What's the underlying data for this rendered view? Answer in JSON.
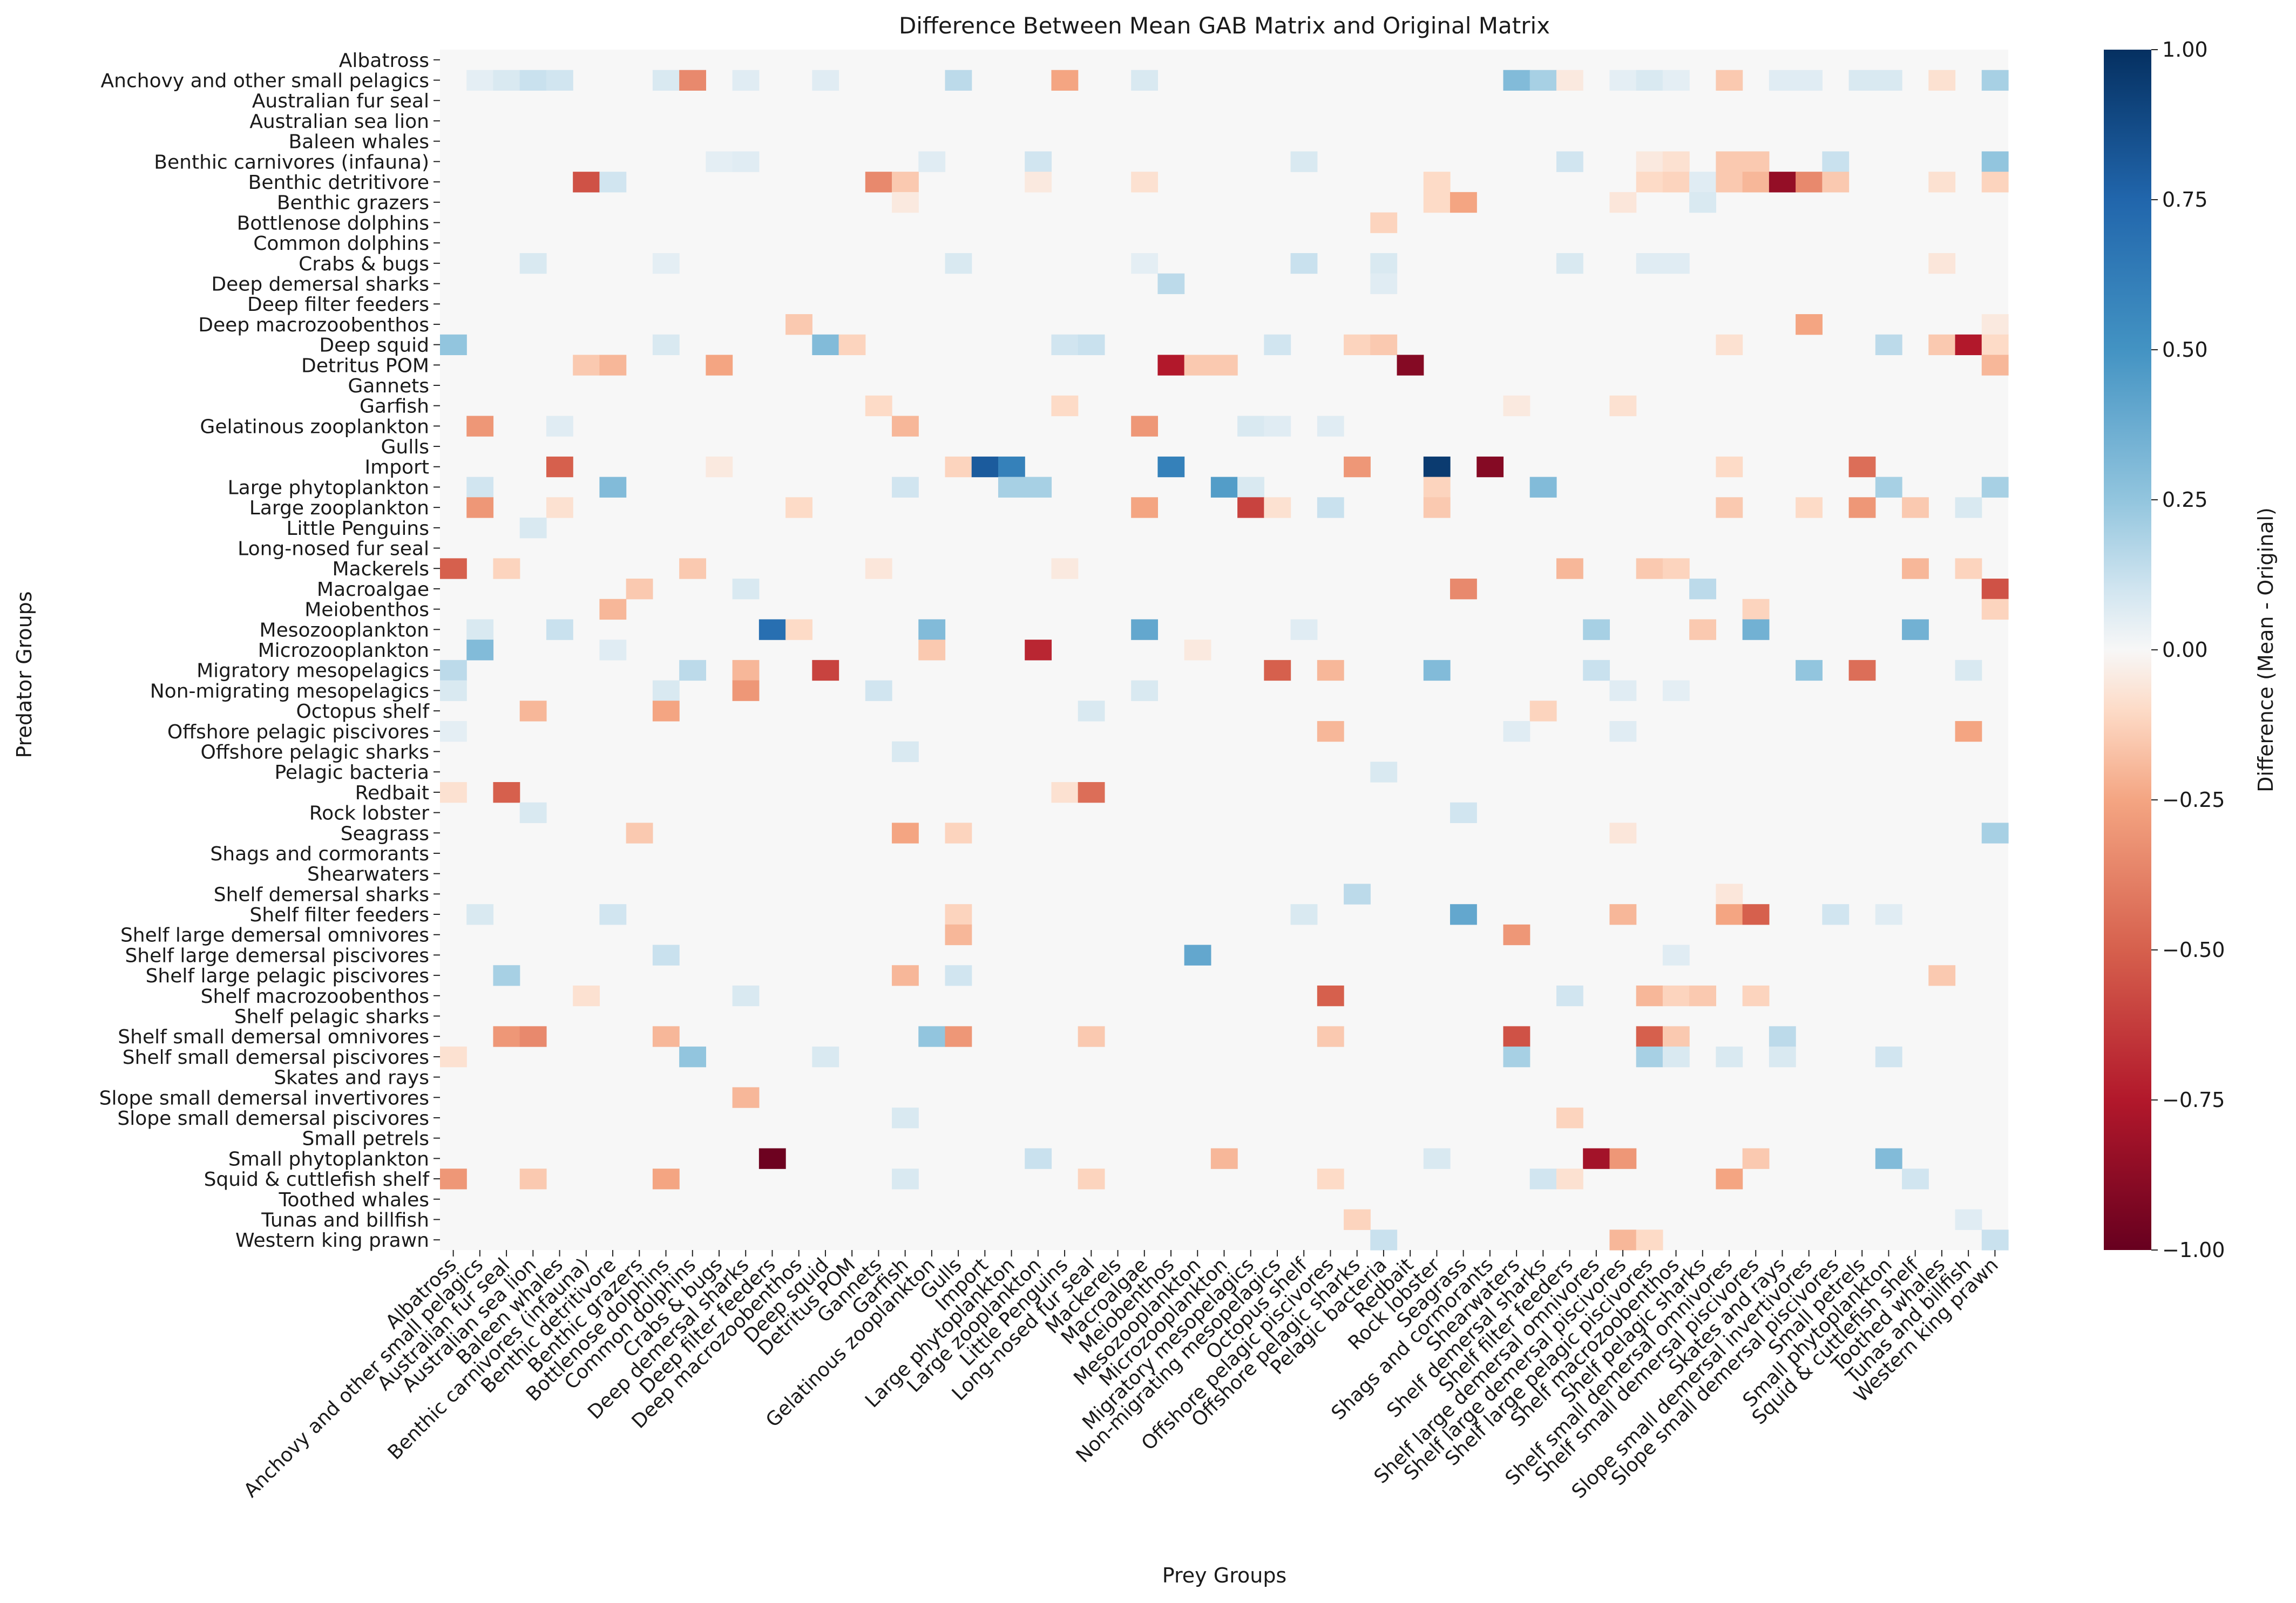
{
  "chart_data": {
    "type": "heatmap",
    "title": "Difference Between Mean GAB Matrix and Original Matrix",
    "xlabel": "Prey Groups",
    "ylabel": "Predator Groups",
    "colorbar_label": "Difference (Mean - Original)",
    "colormap": "RdBu",
    "vmin": -1.0,
    "vmax": 1.0,
    "colorbar_ticks": [
      "−1.00",
      "−0.75",
      "−0.50",
      "−0.25",
      "0.00",
      "0.25",
      "0.50",
      "0.75",
      "1.00"
    ],
    "colorbar_tick_values": [
      -1.0,
      -0.75,
      -0.5,
      -0.25,
      0.0,
      0.25,
      0.5,
      0.75,
      1.0
    ],
    "legend_placement": "right",
    "groups": [
      "Albatross",
      "Anchovy and other small pelagics",
      "Australian fur seal",
      "Australian sea lion",
      "Baleen whales",
      "Benthic carnivores (infauna)",
      "Benthic detritivore",
      "Benthic grazers",
      "Bottlenose dolphins",
      "Common dolphins",
      "Crabs & bugs",
      "Deep demersal sharks",
      "Deep filter feeders",
      "Deep macrozoobenthos",
      "Deep squid",
      "Detritus POM",
      "Gannets",
      "Garfish",
      "Gelatinous zooplankton",
      "Gulls",
      "Import",
      "Large phytoplankton",
      "Large zooplankton",
      "Little Penguins",
      "Long-nosed fur seal",
      "Mackerels",
      "Macroalgae",
      "Meiobenthos",
      "Mesozooplankton",
      "Microzooplankton",
      "Migratory mesopelagics",
      "Non-migrating mesopelagics",
      "Octopus shelf",
      "Offshore pelagic piscivores",
      "Offshore pelagic sharks",
      "Pelagic bacteria",
      "Redbait",
      "Rock lobster",
      "Seagrass",
      "Shags and cormorants",
      "Shearwaters",
      "Shelf demersal sharks",
      "Shelf filter feeders",
      "Shelf large demersal omnivores",
      "Shelf large demersal piscivores",
      "Shelf large pelagic piscivores",
      "Shelf macrozoobenthos",
      "Shelf pelagic sharks",
      "Shelf small demersal omnivores",
      "Shelf small demersal piscivores",
      "Skates and rays",
      "Slope small demersal invertivores",
      "Slope small demersal piscivores",
      "Small petrels",
      "Small phytoplankton",
      "Squid & cuttlefish shelf",
      "Toothed whales",
      "Tunas and billfish",
      "Western king prawn"
    ],
    "cells": [
      [
        1,
        1,
        0.05
      ],
      [
        1,
        2,
        0.08
      ],
      [
        1,
        3,
        0.12
      ],
      [
        1,
        4,
        0.1
      ],
      [
        1,
        8,
        0.08
      ],
      [
        1,
        9,
        -0.35
      ],
      [
        1,
        11,
        0.06
      ],
      [
        1,
        14,
        0.06
      ],
      [
        1,
        19,
        0.15
      ],
      [
        1,
        23,
        -0.25
      ],
      [
        1,
        26,
        0.08
      ],
      [
        1,
        40,
        0.3
      ],
      [
        1,
        41,
        0.2
      ],
      [
        1,
        42,
        -0.05
      ],
      [
        1,
        44,
        0.05
      ],
      [
        1,
        45,
        0.08
      ],
      [
        1,
        46,
        0.05
      ],
      [
        1,
        48,
        -0.15
      ],
      [
        1,
        50,
        0.06
      ],
      [
        1,
        51,
        0.06
      ],
      [
        1,
        53,
        0.08
      ],
      [
        1,
        54,
        0.08
      ],
      [
        1,
        56,
        -0.08
      ],
      [
        1,
        58,
        0.2
      ],
      [
        5,
        10,
        0.05
      ],
      [
        5,
        11,
        0.06
      ],
      [
        5,
        18,
        0.06
      ],
      [
        5,
        22,
        0.1
      ],
      [
        5,
        32,
        0.08
      ],
      [
        5,
        42,
        0.1
      ],
      [
        5,
        45,
        -0.05
      ],
      [
        5,
        46,
        -0.08
      ],
      [
        5,
        48,
        -0.15
      ],
      [
        5,
        49,
        -0.15
      ],
      [
        5,
        52,
        0.12
      ],
      [
        5,
        58,
        0.25
      ],
      [
        6,
        5,
        -0.55
      ],
      [
        6,
        6,
        0.1
      ],
      [
        6,
        16,
        -0.35
      ],
      [
        6,
        17,
        -0.15
      ],
      [
        6,
        22,
        -0.05
      ],
      [
        6,
        26,
        -0.08
      ],
      [
        6,
        37,
        -0.1
      ],
      [
        6,
        45,
        -0.1
      ],
      [
        6,
        46,
        -0.12
      ],
      [
        6,
        47,
        0.06
      ],
      [
        6,
        48,
        -0.15
      ],
      [
        6,
        49,
        -0.2
      ],
      [
        6,
        50,
        -0.85
      ],
      [
        6,
        51,
        -0.35
      ],
      [
        6,
        52,
        -0.15
      ],
      [
        6,
        56,
        -0.08
      ],
      [
        6,
        58,
        -0.12
      ],
      [
        7,
        17,
        -0.05
      ],
      [
        7,
        37,
        -0.1
      ],
      [
        7,
        38,
        -0.25
      ],
      [
        7,
        44,
        -0.06
      ],
      [
        7,
        47,
        0.08
      ],
      [
        8,
        35,
        -0.12
      ],
      [
        10,
        3,
        0.08
      ],
      [
        10,
        8,
        0.05
      ],
      [
        10,
        19,
        0.08
      ],
      [
        10,
        26,
        0.05
      ],
      [
        10,
        32,
        0.12
      ],
      [
        10,
        35,
        0.08
      ],
      [
        10,
        42,
        0.08
      ],
      [
        10,
        45,
        0.06
      ],
      [
        10,
        46,
        0.06
      ],
      [
        10,
        56,
        -0.06
      ],
      [
        11,
        27,
        0.15
      ],
      [
        11,
        35,
        0.06
      ],
      [
        13,
        13,
        -0.15
      ],
      [
        13,
        51,
        -0.25
      ],
      [
        13,
        58,
        -0.05
      ],
      [
        14,
        0,
        0.25
      ],
      [
        14,
        14,
        0.3
      ],
      [
        14,
        15,
        -0.12
      ],
      [
        14,
        8,
        0.08
      ],
      [
        14,
        23,
        0.1
      ],
      [
        14,
        24,
        0.12
      ],
      [
        14,
        31,
        0.1
      ],
      [
        14,
        34,
        -0.12
      ],
      [
        14,
        35,
        -0.15
      ],
      [
        14,
        48,
        -0.08
      ],
      [
        14,
        54,
        0.15
      ],
      [
        14,
        56,
        -0.15
      ],
      [
        14,
        57,
        -0.75
      ],
      [
        14,
        58,
        -0.1
      ],
      [
        15,
        5,
        -0.15
      ],
      [
        15,
        6,
        -0.2
      ],
      [
        15,
        10,
        -0.25
      ],
      [
        15,
        27,
        -0.75
      ],
      [
        15,
        28,
        -0.15
      ],
      [
        15,
        29,
        -0.15
      ],
      [
        15,
        36,
        -0.9
      ],
      [
        15,
        58,
        -0.2
      ],
      [
        17,
        16,
        -0.1
      ],
      [
        17,
        23,
        -0.1
      ],
      [
        17,
        40,
        -0.05
      ],
      [
        17,
        44,
        -0.08
      ],
      [
        18,
        1,
        -0.3
      ],
      [
        18,
        4,
        0.06
      ],
      [
        18,
        17,
        -0.2
      ],
      [
        18,
        26,
        -0.3
      ],
      [
        18,
        30,
        0.08
      ],
      [
        18,
        31,
        0.06
      ],
      [
        18,
        33,
        0.06
      ],
      [
        20,
        4,
        -0.5
      ],
      [
        20,
        10,
        -0.05
      ],
      [
        20,
        19,
        -0.12
      ],
      [
        20,
        20,
        0.8
      ],
      [
        20,
        21,
        0.6
      ],
      [
        20,
        27,
        0.6
      ],
      [
        20,
        34,
        -0.3
      ],
      [
        20,
        37,
        0.95
      ],
      [
        20,
        39,
        -0.9
      ],
      [
        20,
        48,
        -0.1
      ],
      [
        20,
        53,
        -0.45
      ],
      [
        21,
        1,
        0.1
      ],
      [
        21,
        6,
        0.3
      ],
      [
        21,
        17,
        0.1
      ],
      [
        21,
        21,
        0.2
      ],
      [
        21,
        22,
        0.2
      ],
      [
        21,
        29,
        0.45
      ],
      [
        21,
        30,
        0.08
      ],
      [
        21,
        37,
        -0.12
      ],
      [
        21,
        41,
        0.3
      ],
      [
        21,
        54,
        0.2
      ],
      [
        21,
        58,
        0.2
      ],
      [
        22,
        1,
        -0.3
      ],
      [
        22,
        4,
        -0.08
      ],
      [
        22,
        13,
        -0.1
      ],
      [
        22,
        26,
        -0.25
      ],
      [
        22,
        30,
        -0.6
      ],
      [
        22,
        31,
        -0.08
      ],
      [
        22,
        33,
        0.12
      ],
      [
        22,
        37,
        -0.15
      ],
      [
        22,
        48,
        -0.15
      ],
      [
        22,
        51,
        -0.1
      ],
      [
        22,
        53,
        -0.3
      ],
      [
        22,
        55,
        -0.15
      ],
      [
        22,
        57,
        0.08
      ],
      [
        23,
        3,
        0.08
      ],
      [
        25,
        0,
        -0.5
      ],
      [
        25,
        2,
        -0.12
      ],
      [
        25,
        9,
        -0.15
      ],
      [
        25,
        16,
        -0.06
      ],
      [
        25,
        23,
        -0.05
      ],
      [
        25,
        42,
        -0.2
      ],
      [
        25,
        45,
        -0.15
      ],
      [
        25,
        46,
        -0.12
      ],
      [
        25,
        55,
        -0.2
      ],
      [
        25,
        57,
        -0.12
      ],
      [
        26,
        7,
        -0.15
      ],
      [
        26,
        11,
        0.08
      ],
      [
        26,
        38,
        -0.35
      ],
      [
        26,
        47,
        0.15
      ],
      [
        26,
        58,
        -0.55
      ],
      [
        27,
        6,
        -0.2
      ],
      [
        27,
        49,
        -0.12
      ],
      [
        27,
        58,
        -0.12
      ],
      [
        28,
        1,
        0.08
      ],
      [
        28,
        4,
        0.12
      ],
      [
        28,
        12,
        0.7
      ],
      [
        28,
        13,
        -0.1
      ],
      [
        28,
        18,
        0.3
      ],
      [
        28,
        26,
        0.4
      ],
      [
        28,
        32,
        0.06
      ],
      [
        28,
        43,
        0.2
      ],
      [
        28,
        47,
        -0.15
      ],
      [
        28,
        49,
        0.35
      ],
      [
        28,
        55,
        0.35
      ],
      [
        29,
        1,
        0.3
      ],
      [
        29,
        6,
        0.06
      ],
      [
        29,
        18,
        -0.15
      ],
      [
        29,
        22,
        -0.7
      ],
      [
        29,
        28,
        -0.05
      ],
      [
        30,
        0,
        0.15
      ],
      [
        30,
        9,
        0.15
      ],
      [
        30,
        11,
        -0.2
      ],
      [
        30,
        14,
        -0.6
      ],
      [
        30,
        31,
        -0.5
      ],
      [
        30,
        33,
        -0.2
      ],
      [
        30,
        37,
        0.3
      ],
      [
        30,
        43,
        0.12
      ],
      [
        30,
        51,
        0.25
      ],
      [
        30,
        53,
        -0.45
      ],
      [
        30,
        57,
        0.08
      ],
      [
        31,
        0,
        0.08
      ],
      [
        31,
        8,
        0.08
      ],
      [
        31,
        11,
        -0.3
      ],
      [
        31,
        16,
        0.1
      ],
      [
        31,
        26,
        0.08
      ],
      [
        31,
        44,
        0.06
      ],
      [
        31,
        46,
        0.05
      ],
      [
        32,
        3,
        -0.2
      ],
      [
        32,
        8,
        -0.25
      ],
      [
        32,
        24,
        0.08
      ],
      [
        32,
        41,
        -0.12
      ],
      [
        33,
        0,
        0.05
      ],
      [
        33,
        33,
        -0.2
      ],
      [
        33,
        40,
        0.06
      ],
      [
        33,
        44,
        0.06
      ],
      [
        33,
        57,
        -0.25
      ],
      [
        34,
        17,
        0.08
      ],
      [
        35,
        35,
        0.08
      ],
      [
        36,
        0,
        -0.08
      ],
      [
        36,
        2,
        -0.5
      ],
      [
        36,
        23,
        -0.08
      ],
      [
        36,
        24,
        -0.45
      ],
      [
        37,
        3,
        0.08
      ],
      [
        37,
        38,
        0.1
      ],
      [
        38,
        7,
        -0.15
      ],
      [
        38,
        17,
        -0.25
      ],
      [
        38,
        19,
        -0.12
      ],
      [
        38,
        44,
        -0.06
      ],
      [
        38,
        58,
        0.2
      ],
      [
        41,
        34,
        0.15
      ],
      [
        41,
        48,
        -0.06
      ],
      [
        42,
        1,
        0.08
      ],
      [
        42,
        6,
        0.1
      ],
      [
        42,
        38,
        0.4
      ],
      [
        42,
        19,
        -0.12
      ],
      [
        42,
        32,
        0.08
      ],
      [
        42,
        44,
        -0.2
      ],
      [
        42,
        48,
        -0.25
      ],
      [
        42,
        49,
        -0.5
      ],
      [
        42,
        52,
        0.1
      ],
      [
        42,
        54,
        0.06
      ],
      [
        43,
        19,
        -0.2
      ],
      [
        43,
        40,
        -0.3
      ],
      [
        44,
        8,
        0.12
      ],
      [
        44,
        28,
        0.4
      ],
      [
        44,
        46,
        0.06
      ],
      [
        45,
        2,
        0.2
      ],
      [
        45,
        17,
        -0.2
      ],
      [
        45,
        19,
        0.1
      ],
      [
        45,
        56,
        -0.15
      ],
      [
        46,
        5,
        -0.08
      ],
      [
        46,
        11,
        0.08
      ],
      [
        46,
        33,
        -0.5
      ],
      [
        46,
        42,
        0.1
      ],
      [
        46,
        45,
        -0.2
      ],
      [
        46,
        46,
        -0.12
      ],
      [
        46,
        47,
        -0.15
      ],
      [
        46,
        49,
        -0.12
      ],
      [
        48,
        2,
        -0.3
      ],
      [
        48,
        3,
        -0.35
      ],
      [
        48,
        8,
        -0.2
      ],
      [
        48,
        18,
        0.25
      ],
      [
        48,
        19,
        -0.3
      ],
      [
        48,
        24,
        -0.15
      ],
      [
        48,
        33,
        -0.15
      ],
      [
        48,
        40,
        -0.55
      ],
      [
        48,
        45,
        -0.5
      ],
      [
        48,
        46,
        -0.15
      ],
      [
        48,
        50,
        0.15
      ],
      [
        49,
        0,
        -0.08
      ],
      [
        49,
        9,
        0.25
      ],
      [
        49,
        14,
        0.08
      ],
      [
        49,
        40,
        0.2
      ],
      [
        49,
        45,
        0.2
      ],
      [
        49,
        46,
        0.08
      ],
      [
        49,
        48,
        0.08
      ],
      [
        49,
        50,
        0.08
      ],
      [
        49,
        54,
        0.1
      ],
      [
        51,
        11,
        -0.2
      ],
      [
        52,
        17,
        0.08
      ],
      [
        52,
        42,
        -0.12
      ],
      [
        54,
        12,
        -0.98
      ],
      [
        54,
        22,
        0.12
      ],
      [
        54,
        29,
        -0.2
      ],
      [
        54,
        37,
        0.08
      ],
      [
        54,
        43,
        -0.8
      ],
      [
        54,
        44,
        -0.3
      ],
      [
        54,
        49,
        -0.15
      ],
      [
        54,
        54,
        0.3
      ],
      [
        55,
        0,
        -0.3
      ],
      [
        55,
        3,
        -0.15
      ],
      [
        55,
        8,
        -0.25
      ],
      [
        55,
        17,
        0.08
      ],
      [
        55,
        24,
        -0.12
      ],
      [
        55,
        33,
        -0.1
      ],
      [
        55,
        41,
        0.1
      ],
      [
        55,
        42,
        -0.08
      ],
      [
        55,
        48,
        -0.25
      ],
      [
        55,
        55,
        0.1
      ],
      [
        57,
        34,
        -0.12
      ],
      [
        57,
        57,
        0.06
      ],
      [
        58,
        35,
        0.12
      ],
      [
        58,
        44,
        -0.2
      ],
      [
        58,
        45,
        -0.1
      ],
      [
        58,
        58,
        0.12
      ]
    ]
  }
}
